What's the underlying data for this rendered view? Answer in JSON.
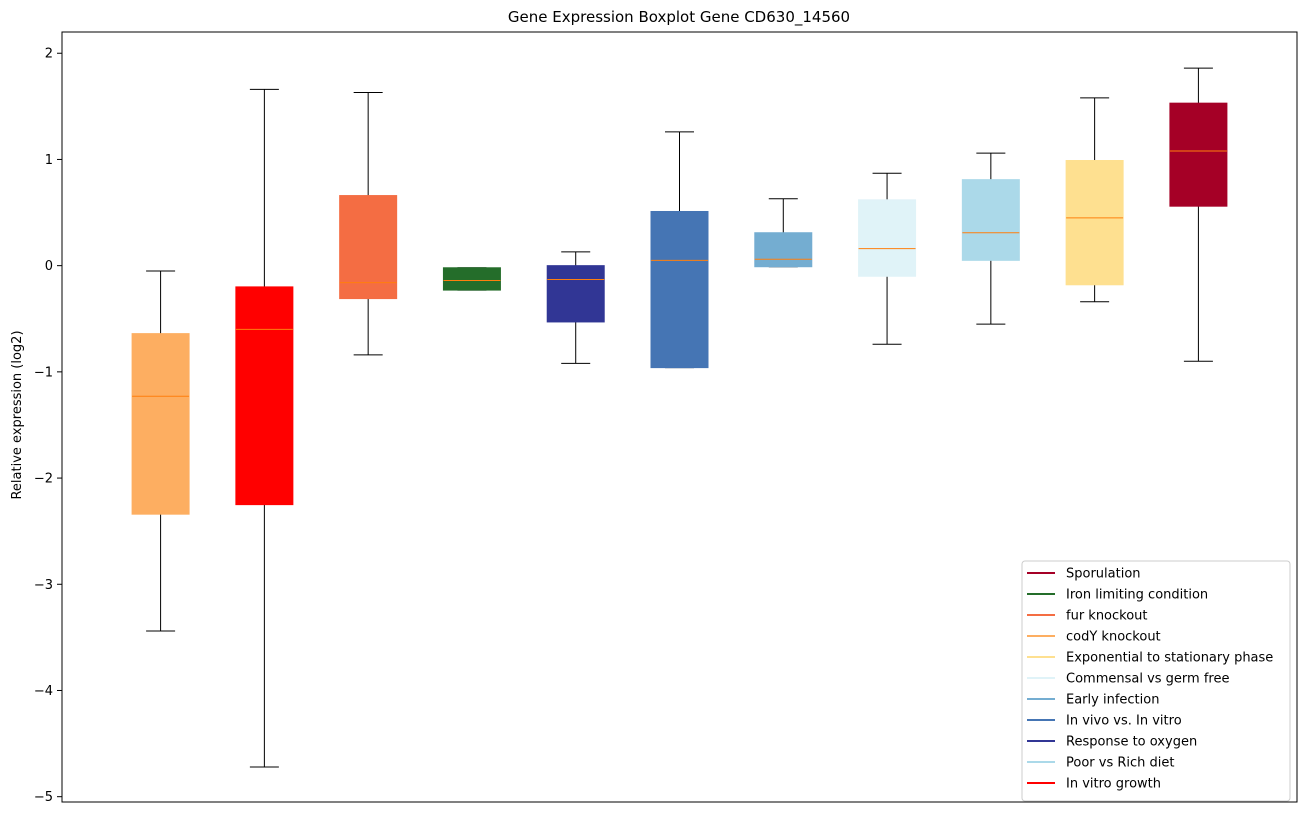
{
  "chart_data": {
    "type": "boxplot",
    "title": "Gene Expression Boxplot Gene CD630_14560",
    "ylabel": "Relative expression (log2)",
    "xlabel": "",
    "ylim": [
      -5.05,
      2.2
    ],
    "yticks": [
      -5,
      -4,
      -3,
      -2,
      -1,
      0,
      1,
      2
    ],
    "ytick_labels": [
      "−5",
      "−4",
      "−3",
      "−2",
      "−1",
      "0",
      "1",
      "2"
    ],
    "median_color": "#ff7f0e",
    "boxes": [
      {
        "name": "codY knockout",
        "color": "#fdae61",
        "whisker_low": -3.44,
        "q1": -2.34,
        "median": -1.23,
        "q3": -0.64,
        "whisker_high": -0.05
      },
      {
        "name": "In vitro growth",
        "color": "#ff0000",
        "whisker_low": -4.72,
        "q1": -2.25,
        "median": -0.6,
        "q3": -0.2,
        "whisker_high": 1.66
      },
      {
        "name": "fur knockout",
        "color": "#f46d43",
        "whisker_low": -0.84,
        "q1": -0.31,
        "median": -0.16,
        "q3": 0.66,
        "whisker_high": 1.63
      },
      {
        "name": "Iron limiting condition",
        "color": "#246d2a",
        "whisker_low": -0.23,
        "q1": -0.23,
        "median": -0.14,
        "q3": -0.02,
        "whisker_high": -0.02
      },
      {
        "name": "Response to oxygen",
        "color": "#313695",
        "whisker_low": -0.92,
        "q1": -0.53,
        "median": -0.13,
        "q3": 0.0,
        "whisker_high": 0.13
      },
      {
        "name": "In vivo vs. In vitro",
        "color": "#4575b4",
        "whisker_low": -0.96,
        "q1": -0.96,
        "median": 0.05,
        "q3": 0.51,
        "whisker_high": 1.26
      },
      {
        "name": "Early infection",
        "color": "#74add1",
        "whisker_low": -0.01,
        "q1": -0.01,
        "median": 0.06,
        "q3": 0.31,
        "whisker_high": 0.63
      },
      {
        "name": "Commensal vs germ free",
        "color": "#e0f3f8",
        "whisker_low": -0.74,
        "q1": -0.1,
        "median": 0.16,
        "q3": 0.62,
        "whisker_high": 0.87
      },
      {
        "name": "Poor vs Rich diet",
        "color": "#abd9e9",
        "whisker_low": -0.55,
        "q1": 0.05,
        "median": 0.31,
        "q3": 0.81,
        "whisker_high": 1.06
      },
      {
        "name": "Exponential to stationary phase",
        "color": "#fee090",
        "whisker_low": -0.34,
        "q1": -0.18,
        "median": 0.45,
        "q3": 0.99,
        "whisker_high": 1.58
      },
      {
        "name": "Sporulation",
        "color": "#a50026",
        "whisker_low": -0.9,
        "q1": 0.56,
        "median": 1.08,
        "q3": 1.53,
        "whisker_high": 1.86
      }
    ],
    "legend": {
      "position": "lower-right",
      "entries": [
        {
          "label": "Sporulation",
          "color": "#a50026"
        },
        {
          "label": "Iron limiting condition",
          "color": "#246d2a"
        },
        {
          "label": "fur knockout",
          "color": "#f46d43"
        },
        {
          "label": "codY knockout",
          "color": "#fdae61"
        },
        {
          "label": "Exponential to stationary phase",
          "color": "#fee090"
        },
        {
          "label": "Commensal vs germ free",
          "color": "#e0f3f8"
        },
        {
          "label": "Early infection",
          "color": "#74add1"
        },
        {
          "label": "In vivo vs. In vitro",
          "color": "#4575b4"
        },
        {
          "label": "Response to oxygen",
          "color": "#313695"
        },
        {
          "label": "Poor vs Rich diet",
          "color": "#abd9e9"
        },
        {
          "label": "In vitro growth",
          "color": "#ff0000"
        }
      ]
    }
  }
}
